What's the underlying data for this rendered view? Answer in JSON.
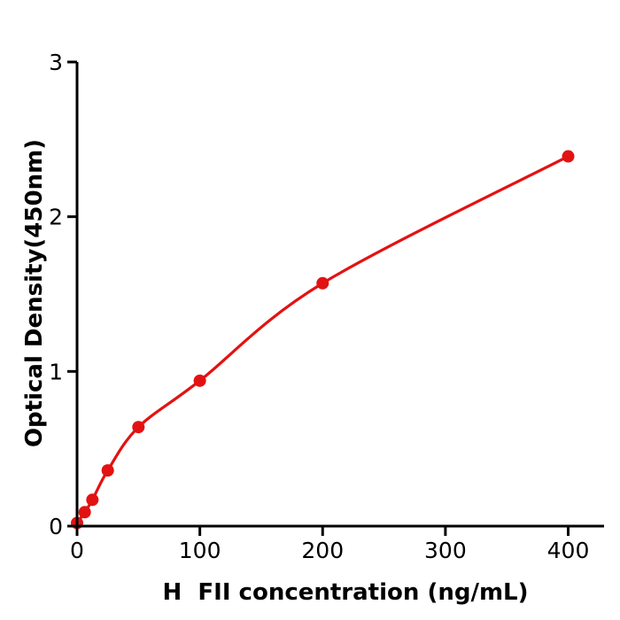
{
  "chart_data": {
    "type": "scatter",
    "curve": "smooth standard-curve fit through points",
    "title": "",
    "xlabel": "H  FII concentration (ng/mL)",
    "ylabel": "Optical Density(450nm)",
    "x": [
      0,
      6.25,
      12.5,
      25,
      50,
      100,
      200,
      400
    ],
    "y": [
      0.02,
      0.09,
      0.17,
      0.36,
      0.64,
      0.94,
      1.57,
      2.39
    ],
    "xticks": [
      0,
      100,
      200,
      300,
      400
    ],
    "yticks": [
      0,
      1,
      2,
      3
    ],
    "xlim": [
      0,
      429
    ],
    "ylim": [
      0,
      3
    ],
    "grid": false,
    "legend": null,
    "colors": {
      "series": "#e31212",
      "axis": "#000000",
      "background": "#ffffff",
      "tick_label": "#000000"
    }
  }
}
